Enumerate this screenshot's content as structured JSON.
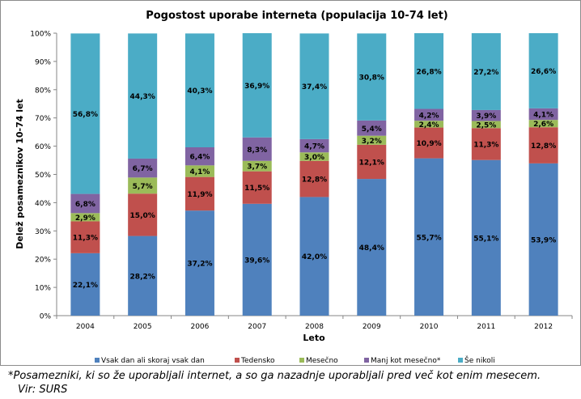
{
  "chart_data": {
    "type": "bar",
    "stacked": true,
    "title": "Pogostost uporabe interneta (populacija 10-74 let)",
    "xlabel": "Leto",
    "ylabel": "Delež posameznikov 10-74 let",
    "ylim": [
      0,
      100
    ],
    "yticks": [
      "0%",
      "10%",
      "20%",
      "30%",
      "40%",
      "50%",
      "60%",
      "70%",
      "80%",
      "90%",
      "100%"
    ],
    "grid": false,
    "legend_position": "bottom",
    "categories": [
      "2004",
      "2005",
      "2006",
      "2007",
      "2008",
      "2009",
      "2010",
      "2011",
      "2012"
    ],
    "series": [
      {
        "name": "Vsak dan ali skoraj vsak dan",
        "color": "#4F81BD",
        "values": [
          22.1,
          28.2,
          37.2,
          39.6,
          42.0,
          48.4,
          55.7,
          55.1,
          53.9
        ],
        "labels": [
          "22,1%",
          "28,2%",
          "37,2%",
          "39,6%",
          "42,0%",
          "48,4%",
          "55,7%",
          "55,1%",
          "53,9%"
        ]
      },
      {
        "name": "Tedensko",
        "color": "#C0504D",
        "values": [
          11.3,
          15.0,
          11.9,
          11.5,
          12.8,
          12.1,
          10.9,
          11.3,
          12.8
        ],
        "labels": [
          "11,3%",
          "15,0%",
          "11,9%",
          "11,5%",
          "12,8%",
          "12,1%",
          "10,9%",
          "11,3%",
          "12,8%"
        ]
      },
      {
        "name": "Mesečno",
        "color": "#9BBB59",
        "values": [
          2.9,
          5.7,
          4.1,
          3.7,
          3.0,
          3.2,
          2.4,
          2.5,
          2.6
        ],
        "labels": [
          "2,9%",
          "5,7%",
          "4,1%",
          "3,7%",
          "3,0%",
          "3,2%",
          "2,4%",
          "2,5%",
          "2,6%"
        ]
      },
      {
        "name": "Manj kot mesečno*",
        "color": "#8064A2",
        "values": [
          6.8,
          6.7,
          6.4,
          8.3,
          4.7,
          5.4,
          4.2,
          3.9,
          4.1
        ],
        "labels": [
          "6,8%",
          "6,7%",
          "6,4%",
          "8,3%",
          "4,7%",
          "5,4%",
          "4,2%",
          "3,9%",
          "4,1%"
        ]
      },
      {
        "name": "Še nikoli",
        "color": "#4BACC6",
        "values": [
          56.8,
          44.3,
          40.3,
          36.9,
          37.4,
          30.8,
          26.8,
          27.2,
          26.6
        ],
        "labels": [
          "56,8%",
          "44,3%",
          "40,3%",
          "36,9%",
          "37,4%",
          "30,8%",
          "26,8%",
          "27,2%",
          "26,6%"
        ]
      }
    ]
  },
  "footnote": "*Posamezniki, ki so že uporabljali internet, a so ga nazadnje uporabljali pred več kot enim mesecem.",
  "source": "Vir: SURS"
}
